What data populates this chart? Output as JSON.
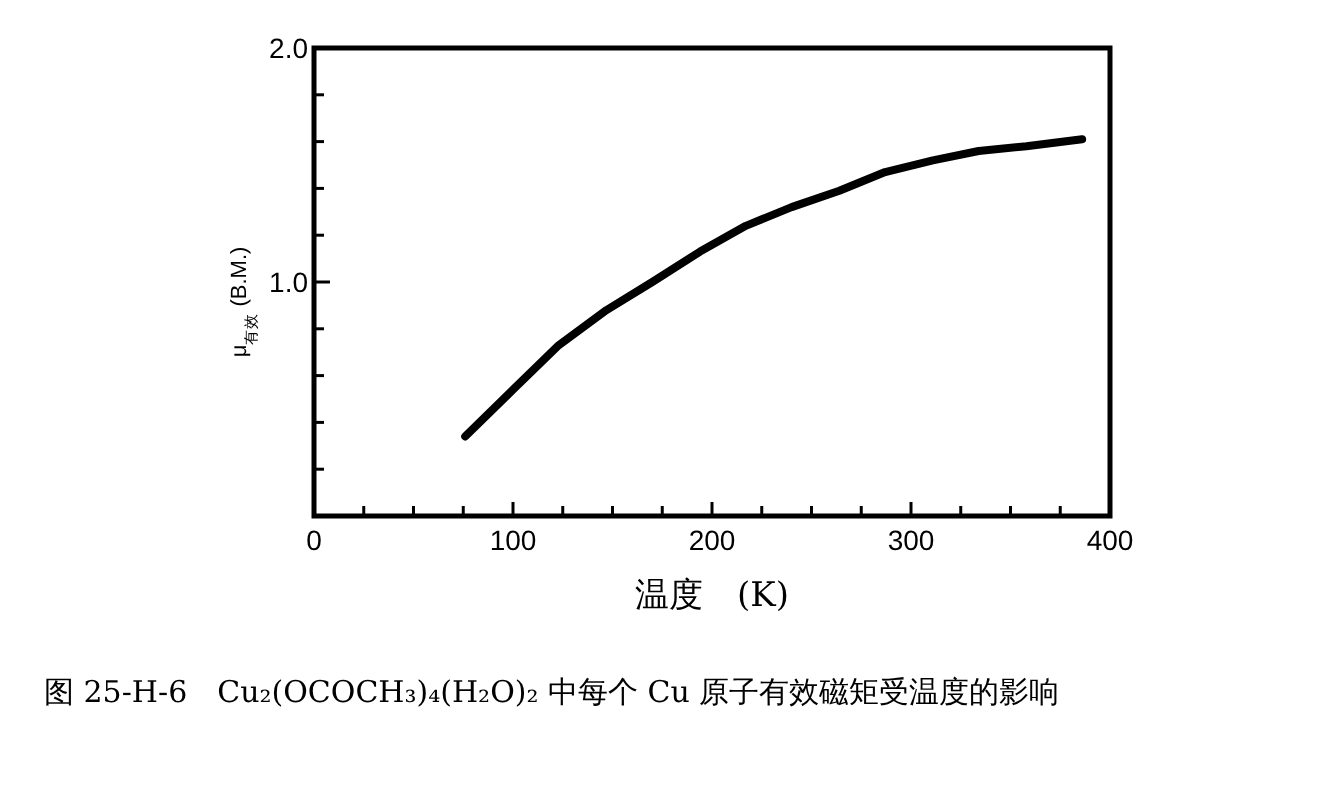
{
  "chart_data": {
    "type": "line",
    "xlabel": "温度　(K)",
    "ylabel": "μ$_{有效}$ (B.M.)",
    "annotations": [
      "图 25-H-6　Cu₂(OCOCH₃)₄(H₂O)₂ 中每个 Cu 原子有效磁矩受温度的影响"
    ],
    "x": [
      76,
      100,
      123,
      147,
      170,
      194,
      217,
      240,
      264,
      287,
      311,
      334,
      358,
      386
    ],
    "series": [
      {
        "color": "#000000",
        "values": [
          0.34,
          0.54,
          0.73,
          0.88,
          1.0,
          1.13,
          1.24,
          1.32,
          1.39,
          1.47,
          1.52,
          1.56,
          1.58,
          1.61
        ]
      }
    ],
    "xlim": [
      0,
      400
    ],
    "ylim": [
      0,
      2.0
    ],
    "xticks": [
      0,
      {
        "value": 25,
        "label": null
      },
      {
        "value": 50,
        "label": null
      },
      {
        "value": 75,
        "label": null
      },
      100,
      {
        "value": 125,
        "label": null
      },
      {
        "value": 150,
        "label": null
      },
      {
        "value": 175,
        "label": null
      },
      200,
      {
        "value": 225,
        "label": null
      },
      {
        "value": 250,
        "label": null
      },
      {
        "value": 275,
        "label": null
      },
      300,
      {
        "value": 325,
        "label": null
      },
      {
        "value": 350,
        "label": null
      },
      {
        "value": 375,
        "label": null
      },
      400
    ],
    "yticks": [
      {
        "value": 0.2,
        "label": null
      },
      {
        "value": 0.4,
        "label": null
      },
      {
        "value": 0.6,
        "label": null
      },
      {
        "value": 0.8,
        "label": null
      },
      {
        "value": 1,
        "label": "1.0"
      },
      {
        "value": 1.2,
        "label": null
      },
      {
        "value": 1.4,
        "label": null
      },
      {
        "value": 1.6,
        "label": null
      },
      {
        "value": 1.8,
        "label": null
      },
      {
        "value": 2,
        "label": "2.0"
      }
    ],
    "line_style": "solid",
    "marker": "none"
  }
}
